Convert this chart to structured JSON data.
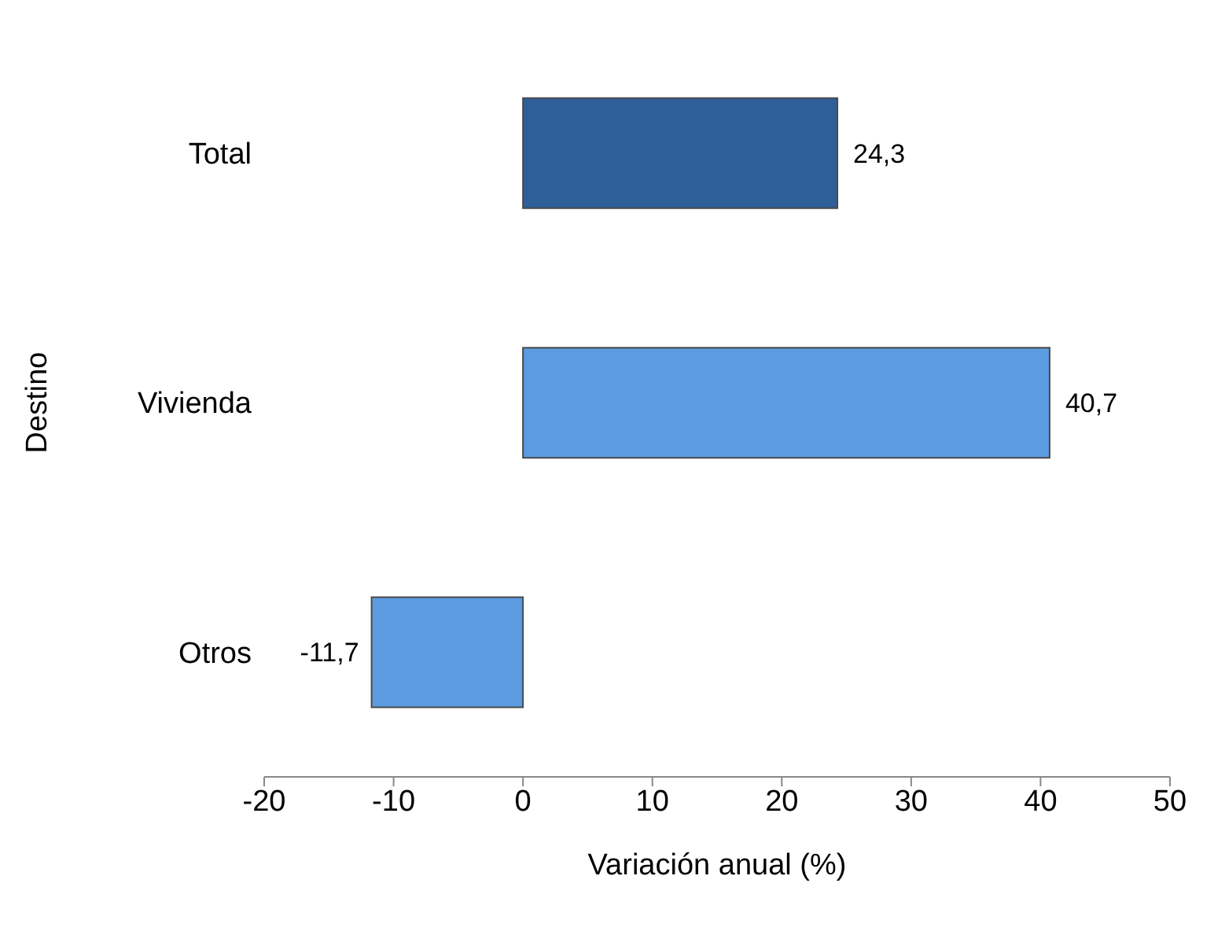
{
  "chart_data": {
    "type": "bar",
    "orientation": "horizontal",
    "xlabel": "Variación anual (%)",
    "ylabel": "Destino",
    "categories": [
      "Total",
      "Vivienda",
      "Otros"
    ],
    "values": [
      24.3,
      40.7,
      -11.7
    ],
    "colors": [
      "#2f5f98",
      "#5b9be0",
      "#5b9be0"
    ],
    "value_labels": [
      "24,3",
      "40,7",
      "-11,7"
    ],
    "xlim": [
      -20,
      50
    ],
    "xticks": [
      -20,
      -10,
      0,
      10,
      20,
      30,
      40,
      50
    ],
    "grid": false,
    "legend": false
  }
}
